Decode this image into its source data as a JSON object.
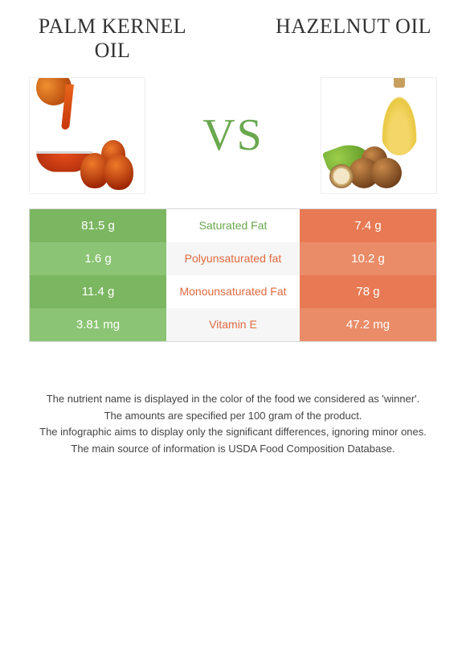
{
  "header": {
    "left_title": "Palm kernel oil",
    "right_title": "Hazelnut oil",
    "vs_label": "VS",
    "vs_color": "#6aa84f"
  },
  "colors": {
    "left_col": "#7bb661",
    "left_col_alt": "#8bc474",
    "right_col": "#e77a54",
    "right_col_alt": "#ea8c68",
    "winner_left_text": "#6aa84f",
    "winner_right_text": "#e06a40",
    "border": "#d8d8d8"
  },
  "rows": [
    {
      "left": "81.5 g",
      "label": "Saturated Fat",
      "right": "7.4 g",
      "winner": "left"
    },
    {
      "left": "1.6 g",
      "label": "Polyunsaturated fat",
      "right": "10.2 g",
      "winner": "right"
    },
    {
      "left": "11.4 g",
      "label": "Monounsaturated Fat",
      "right": "78 g",
      "winner": "right"
    },
    {
      "left": "3.81 mg",
      "label": "Vitamin E",
      "right": "47.2 mg",
      "winner": "right"
    }
  ],
  "footnotes": [
    "The nutrient name is displayed in the color of the food we considered as 'winner'.",
    "The amounts are specified per 100 gram of the product.",
    "The infographic aims to display only the significant differences, ignoring minor ones.",
    "The main source of information is USDA Food Composition Database."
  ]
}
